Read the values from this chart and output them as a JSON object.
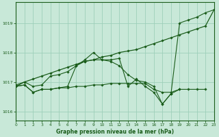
{
  "title": "Graphe pression niveau de la mer (hPa)",
  "bg_color": "#c8e8d8",
  "grid_color": "#9ecfba",
  "line_color": "#1a5c1a",
  "xlim": [
    0,
    23
  ],
  "ylim": [
    1015.7,
    1019.7
  ],
  "yticks": [
    1016,
    1017,
    1018,
    1019
  ],
  "xticks": [
    0,
    1,
    2,
    3,
    4,
    5,
    6,
    7,
    8,
    9,
    10,
    11,
    12,
    13,
    14,
    15,
    16,
    17,
    18,
    19,
    20,
    21,
    22,
    23
  ],
  "s1": [
    1016.85,
    1016.9,
    1016.65,
    1016.75,
    1016.75,
    1016.8,
    1016.8,
    1016.85,
    1016.85,
    1016.9,
    1016.9,
    1016.95,
    1016.95,
    1016.95,
    1016.95,
    1016.95,
    1016.75,
    1016.65,
    1016.65,
    1016.75,
    1016.75,
    1016.75,
    1016.75,
    null
  ],
  "s2": [
    1016.85,
    1016.9,
    1016.65,
    1016.75,
    1016.75,
    1016.8,
    1016.85,
    1017.55,
    1017.7,
    1017.75,
    1017.75,
    1017.75,
    1017.8,
    1016.85,
    1017.1,
    1016.85,
    1016.65,
    1016.25,
    1016.6,
    1016.75,
    null,
    null,
    null,
    null
  ],
  "s3": [
    1016.9,
    1017.0,
    1016.85,
    1016.9,
    1017.2,
    1017.25,
    1017.35,
    1017.55,
    1017.75,
    1018.0,
    1017.75,
    1017.7,
    1017.55,
    1017.25,
    1017.05,
    1017.0,
    1016.85,
    1016.25,
    1016.6,
    1019.0,
    1019.1,
    1019.2,
    1019.35,
    1019.45
  ],
  "s4_linear": [
    1016.85,
    1017.0,
    1017.1,
    1017.2,
    1017.3,
    1017.4,
    1017.5,
    1017.6,
    1017.7,
    1017.75,
    1017.85,
    1017.9,
    1018.0,
    1018.05,
    1018.1,
    1018.2,
    1018.3,
    1018.4,
    1018.5,
    1018.6,
    1018.7,
    1018.8,
    1018.9,
    1019.45
  ]
}
